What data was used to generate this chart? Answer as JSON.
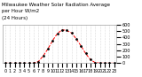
{
  "title": "Milwaukee Weather Solar Radiation Average",
  "subtitle1": "per Hour W/m2",
  "subtitle2": "(24 Hours)",
  "hours": [
    0,
    1,
    2,
    3,
    4,
    5,
    6,
    7,
    8,
    9,
    10,
    11,
    12,
    13,
    14,
    15,
    16,
    17,
    18,
    19,
    20,
    21,
    22,
    23
  ],
  "values": [
    0,
    0,
    0,
    0,
    0,
    0,
    2,
    25,
    110,
    220,
    350,
    460,
    520,
    510,
    470,
    380,
    270,
    150,
    55,
    8,
    1,
    0,
    0,
    0
  ],
  "line_color": "red",
  "marker_color": "black",
  "bg_color": "#ffffff",
  "grid_color": "#bbbbbb",
  "title_color": "#000000",
  "ylim": [
    0,
    600
  ],
  "xlim": [
    -0.5,
    23.5
  ],
  "title_fontsize": 4.0,
  "tick_fontsize": 3.5
}
